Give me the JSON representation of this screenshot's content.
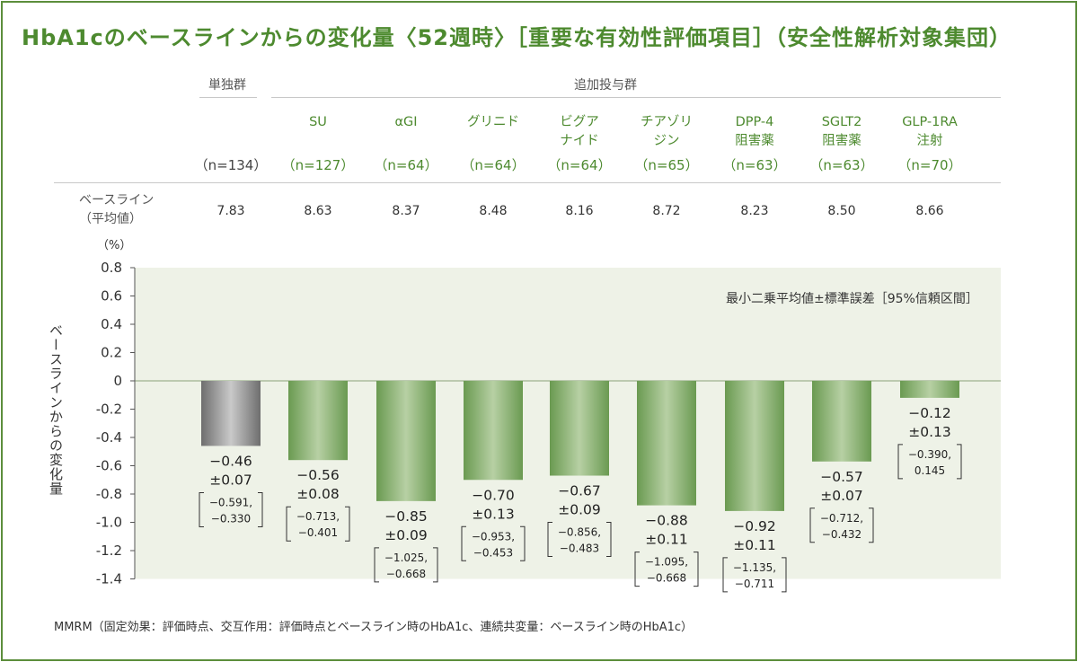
{
  "title": "HbA1cのベースラインからの変化量〈52週時〉［重要な有効性評価項目］（安全性解析対象集団）",
  "header": {
    "mono_group_label": "単独群",
    "add_group_label": "追加投与群",
    "baseline_label_line1": "ベースライン",
    "baseline_label_line2": "（平均値）"
  },
  "ylabel": "ベースラインからの変化量",
  "unit": "（%）",
  "legend_note": "最小二乗平均値±標準誤差［95%信頼区間］",
  "footnote": "MMRM（固定効果：評価時点、交互作用：評価時点とベースライン時のHbA1c、連続共変量：ベースライン時のHbA1c）",
  "colors": {
    "accent": "#4d8a2f",
    "bar_green": "#7aa661",
    "bar_grey": "#8c8c8c",
    "plot_bg": "#eef2e7"
  },
  "chart_data": {
    "type": "bar",
    "title": "HbA1cのベースラインからの変化量〈52週時〉",
    "xlabel": "",
    "ylabel": "ベースラインからの変化量",
    "ylim": [
      -1.4,
      0.8
    ],
    "yticks": [
      "0.8",
      "0.6",
      "0.4",
      "0.2",
      "0",
      "-0.2",
      "-0.4",
      "-0.6",
      "-0.8",
      "-1.0",
      "-1.2",
      "-1.4"
    ],
    "groups": [
      {
        "name_lines": [
          ""
        ],
        "n": "（n=134）",
        "baseline": "7.83",
        "value": -0.46,
        "mean_label": "−0.46",
        "se_label": "±0.07",
        "ci_low": "−0.591,",
        "ci_high": "−0.330",
        "mono": true
      },
      {
        "name_lines": [
          "SU"
        ],
        "n": "（n=127）",
        "baseline": "8.63",
        "value": -0.56,
        "mean_label": "−0.56",
        "se_label": "±0.08",
        "ci_low": "−0.713,",
        "ci_high": "−0.401",
        "mono": false
      },
      {
        "name_lines": [
          "αGI"
        ],
        "n": "（n=64）",
        "baseline": "8.37",
        "value": -0.85,
        "mean_label": "−0.85",
        "se_label": "±0.09",
        "ci_low": "−1.025,",
        "ci_high": "−0.668",
        "mono": false
      },
      {
        "name_lines": [
          "グリニド"
        ],
        "n": "（n=64）",
        "baseline": "8.48",
        "value": -0.7,
        "mean_label": "−0.70",
        "se_label": "±0.13",
        "ci_low": "−0.953,",
        "ci_high": "−0.453",
        "mono": false
      },
      {
        "name_lines": [
          "ビグア",
          "ナイド"
        ],
        "n": "（n=64）",
        "baseline": "8.16",
        "value": -0.67,
        "mean_label": "−0.67",
        "se_label": "±0.09",
        "ci_low": "−0.856,",
        "ci_high": "−0.483",
        "mono": false
      },
      {
        "name_lines": [
          "チアゾリ",
          "ジン"
        ],
        "n": "（n=65）",
        "baseline": "8.72",
        "value": -0.88,
        "mean_label": "−0.88",
        "se_label": "±0.11",
        "ci_low": "−1.095,",
        "ci_high": "−0.668",
        "mono": false
      },
      {
        "name_lines": [
          "DPP-4",
          "阻害薬"
        ],
        "n": "（n=63）",
        "baseline": "8.23",
        "value": -0.92,
        "mean_label": "−0.92",
        "se_label": "±0.11",
        "ci_low": "−1.135,",
        "ci_high": "−0.711",
        "mono": false
      },
      {
        "name_lines": [
          "SGLT2",
          "阻害薬"
        ],
        "n": "（n=63）",
        "baseline": "8.50",
        "value": -0.57,
        "mean_label": "−0.57",
        "se_label": "±0.07",
        "ci_low": "−0.712,",
        "ci_high": "−0.432",
        "mono": false
      },
      {
        "name_lines": [
          "GLP-1RA",
          "注射"
        ],
        "n": "（n=70）",
        "baseline": "8.66",
        "value": -0.12,
        "mean_label": "−0.12",
        "se_label": "±0.13",
        "ci_low": "−0.390,",
        "ci_high": "0.145",
        "mono": false
      }
    ]
  }
}
